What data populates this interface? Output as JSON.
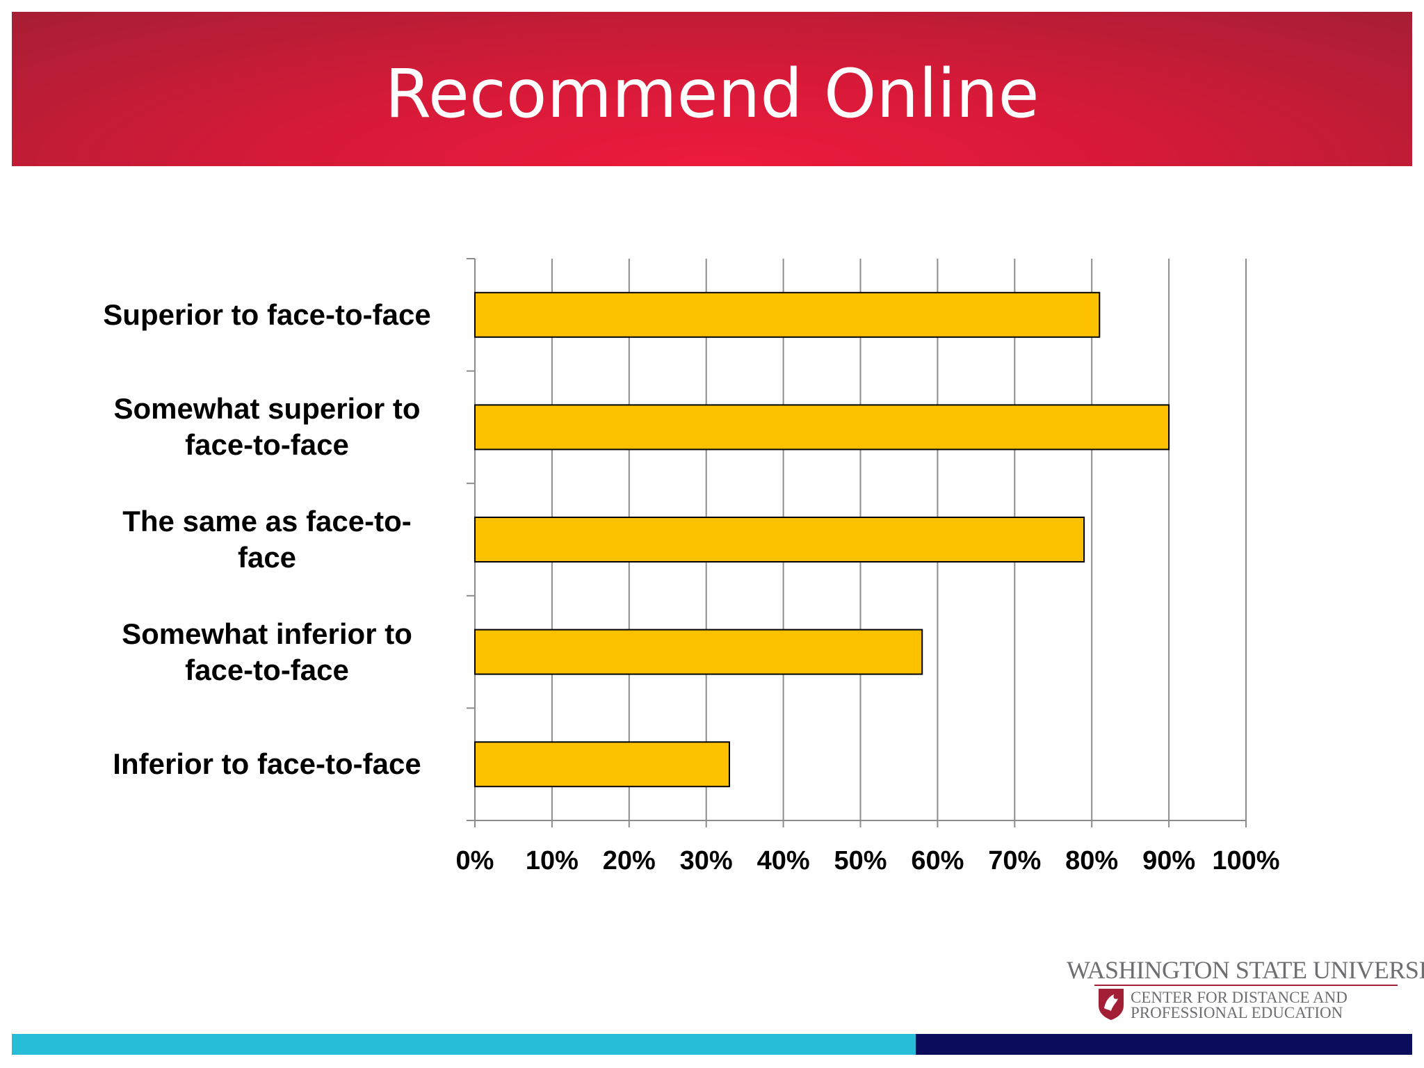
{
  "slide": {
    "title": "Recommend Online"
  },
  "chart_data": {
    "type": "bar",
    "orientation": "horizontal",
    "title": "",
    "categories": [
      "Superior to face-to-face",
      "Somewhat superior to face-to-face",
      "The same as face-to-face",
      "Somewhat inferior to face-to-face",
      "Inferior to face-to-face"
    ],
    "category_labels_display": [
      [
        "Superior to face-to-face"
      ],
      [
        "Somewhat superior to",
        "face-to-face"
      ],
      [
        "The same as face-to-",
        "face"
      ],
      [
        "Somewhat inferior to",
        "face-to-face"
      ],
      [
        "Inferior to face-to-face"
      ]
    ],
    "values": [
      0.81,
      0.9,
      0.79,
      0.58,
      0.33
    ],
    "x_ticks": [
      "0%",
      "10%",
      "20%",
      "30%",
      "40%",
      "50%",
      "60%",
      "70%",
      "80%",
      "90%",
      "100%"
    ],
    "xlim": [
      0,
      1
    ],
    "grid": true,
    "legend": "none",
    "bar_color": "#fdc100",
    "bar_edge_color": "#000000",
    "grid_color": "#8c8c8c"
  },
  "logo": {
    "wordmark": "WASHINGTON STATE UNIVERSITY",
    "line1": "CENTER FOR DISTANCE AND",
    "line2": "PROFESSIONAL EDUCATION"
  },
  "colors": {
    "banner": "#e31837",
    "footer_left": "#27bdd6",
    "footer_right": "#0c0c5c",
    "crimson": "#a31f36"
  }
}
